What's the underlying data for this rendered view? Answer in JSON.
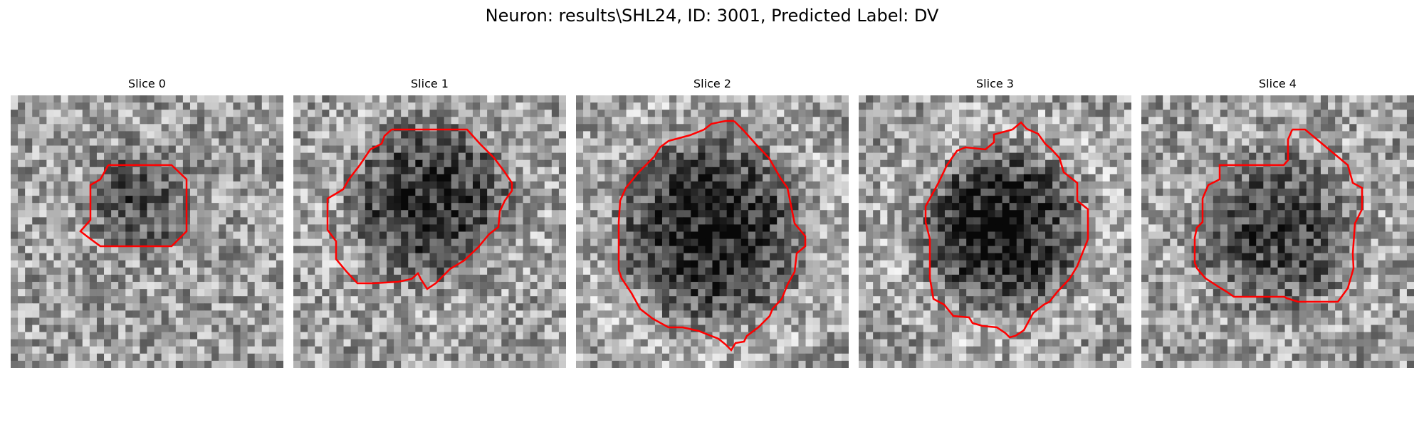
{
  "figure": {
    "title": "Neuron: results\\SHL24, ID: 3001, Predicted Label: DV"
  },
  "panels": [
    {
      "title": "Slice 0"
    },
    {
      "title": "Slice 1"
    },
    {
      "title": "Slice 2"
    },
    {
      "title": "Slice 3"
    },
    {
      "title": "Slice 4"
    }
  ],
  "colors": {
    "contour": "#ff0000",
    "background": "#ffffff"
  }
}
